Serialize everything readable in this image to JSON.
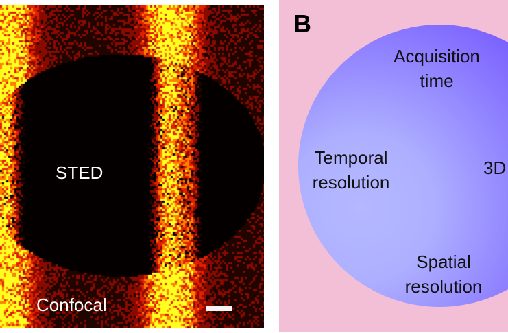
{
  "panelA": {
    "sted_label": "STED",
    "confocal_label": "Confocal",
    "colormap": [
      "#200400",
      "#8a0a00",
      "#e02000",
      "#ff8000",
      "#ffff20"
    ]
  },
  "panelB": {
    "letter": "B",
    "labels": {
      "acquisition": "Acquisition time",
      "temporal": "Temporal resolution",
      "threeD": "3D",
      "spatial": "Spatial resolution"
    },
    "colors": {
      "background": "#f3bfd6",
      "circle_light": "#b4b8ff",
      "circle_dark": "#6440ff"
    }
  }
}
